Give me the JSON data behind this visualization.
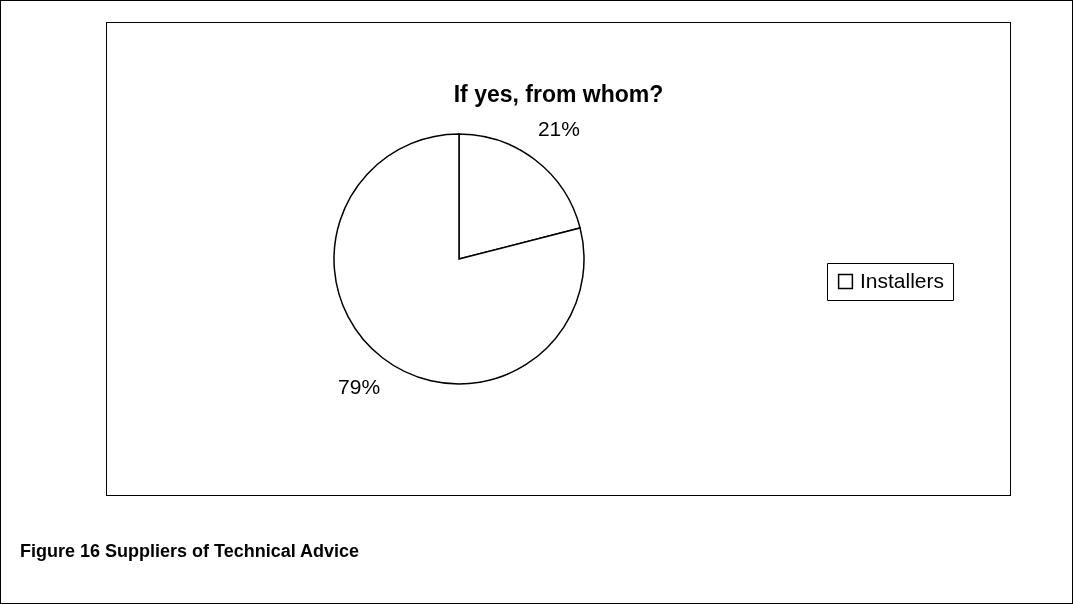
{
  "chart_data": {
    "type": "pie",
    "title": "If yes, from whom?",
    "categories": [
      null,
      "Installers"
    ],
    "values": [
      21,
      79
    ],
    "colors": [
      "#ffffff",
      "#ffffff"
    ],
    "value_labels": [
      "21%",
      "79%"
    ],
    "legend": "right",
    "annotations": [
      "Figure 16 Suppliers of Technical Advice"
    ]
  }
}
